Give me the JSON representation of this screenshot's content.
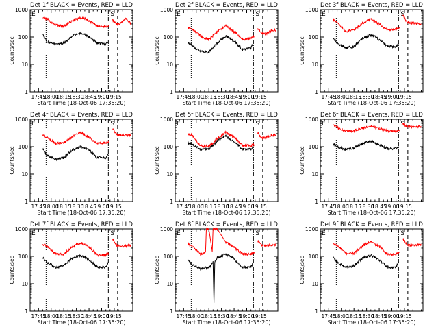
{
  "chart_data": [
    {
      "type": "line",
      "title": "Det 1f BLACK = Events, RED = LLD",
      "xlabel": "Start Time (18-Oct-06 17:35:20)",
      "ylabel": "Counts/sec",
      "x_ticks": [
        "17:45",
        "18:00",
        "18:15",
        "18:30",
        "18:45",
        "19:00",
        "19:15"
      ],
      "y_ticks": [
        "1",
        "10",
        "100",
        "1000"
      ],
      "yscale": "log",
      "ylim": [
        1,
        1000
      ],
      "xlim_minutes": [
        -10,
        112
      ],
      "markers": [
        "E",
        "S"
      ],
      "vlines": {
        "dotted": [
          9,
          114
        ],
        "dashdot": [
          83
        ],
        "dashed": [
          94
        ]
      },
      "series": [
        {
          "color": "#ff0000",
          "x": [
            5,
            10,
            20,
            30,
            40,
            50,
            60,
            70,
            80,
            84,
            88,
            93,
            98,
            104,
            110
          ],
          "values": [
            520,
            460,
            270,
            250,
            380,
            520,
            400,
            250,
            235,
            230,
            420,
            300,
            330,
            480,
            300
          ],
          "gaps_after": [
            84
          ]
        },
        {
          "color": "#000000",
          "x": [
            5,
            10,
            20,
            30,
            40,
            50,
            60,
            70,
            80,
            83
          ],
          "values": [
            130,
            70,
            55,
            60,
            110,
            145,
            100,
            60,
            55,
            70
          ]
        }
      ]
    },
    {
      "type": "line",
      "title": "Det 2f BLACK = Events, RED = LLD",
      "xlabel": "Start Time (18-Oct-06 17:35:20)",
      "ylabel": "Counts/sec",
      "x_ticks": [
        "17:45",
        "18:00",
        "18:15",
        "18:30",
        "18:45",
        "19:00",
        "19:15"
      ],
      "y_ticks": [
        "1",
        "10",
        "100",
        "1000"
      ],
      "yscale": "log",
      "ylim": [
        1,
        1000
      ],
      "xlim_minutes": [
        -10,
        112
      ],
      "markers": [
        "E",
        "S"
      ],
      "vlines": {
        "dotted": [
          9,
          114
        ],
        "dashdot": [
          83
        ],
        "dashed": [
          94
        ]
      },
      "series": [
        {
          "color": "#ff0000",
          "x": [
            5,
            10,
            20,
            30,
            40,
            50,
            60,
            70,
            80,
            84,
            88,
            93,
            98,
            104,
            110
          ],
          "values": [
            220,
            200,
            110,
            80,
            160,
            250,
            160,
            80,
            90,
            110,
            200,
            140,
            130,
            170,
            180
          ],
          "gaps_after": [
            84
          ]
        },
        {
          "color": "#000000",
          "x": [
            5,
            10,
            20,
            30,
            40,
            50,
            60,
            70,
            80,
            83
          ],
          "values": [
            60,
            50,
            30,
            28,
            60,
            110,
            70,
            35,
            40,
            60
          ]
        }
      ]
    },
    {
      "type": "line",
      "title": "Det 3f BLACK = Events, RED = LLD",
      "xlabel": "Start Time (18-Oct-06 17:35:20)",
      "ylabel": "Counts/sec",
      "x_ticks": [
        "17:45",
        "18:00",
        "18:15",
        "18:30",
        "18:45",
        "19:00",
        "19:15"
      ],
      "y_ticks": [
        "1",
        "10",
        "100",
        "1000"
      ],
      "yscale": "log",
      "ylim": [
        1,
        1000
      ],
      "xlim_minutes": [
        -10,
        112
      ],
      "markers": [
        "E",
        "S"
      ],
      "vlines": {
        "dotted": [
          9,
          114
        ],
        "dashdot": [
          83
        ],
        "dashed": [
          94
        ]
      },
      "series": [
        {
          "color": "#ff0000",
          "x": [
            5,
            10,
            20,
            30,
            40,
            50,
            60,
            70,
            80,
            84,
            88,
            93,
            98,
            104,
            110
          ],
          "values": [
            420,
            350,
            160,
            180,
            320,
            450,
            300,
            180,
            200,
            210,
            650,
            350,
            330,
            320,
            300
          ],
          "gaps_after": [
            84
          ]
        },
        {
          "color": "#000000",
          "x": [
            5,
            10,
            20,
            30,
            40,
            50,
            60,
            70,
            80,
            83
          ],
          "values": [
            100,
            60,
            40,
            45,
            90,
            120,
            85,
            45,
            45,
            60
          ]
        }
      ]
    },
    {
      "type": "line",
      "title": "Det 4f BLACK = Events, RED = LLD",
      "xlabel": "Start Time (18-Oct-06 17:35:20)",
      "ylabel": "Counts/sec",
      "x_ticks": [
        "17:45",
        "18:00",
        "18:15",
        "18:30",
        "18:45",
        "19:00",
        "19:15"
      ],
      "y_ticks": [
        "1",
        "10",
        "100",
        "1000"
      ],
      "yscale": "log",
      "ylim": [
        1,
        1000
      ],
      "xlim_minutes": [
        -10,
        112
      ],
      "markers": [
        "E",
        "S"
      ],
      "vlines": {
        "dotted": [
          9,
          114
        ],
        "dashdot": [
          83
        ],
        "dashed": [
          94
        ]
      },
      "series": [
        {
          "color": "#ff0000",
          "x": [
            5,
            10,
            20,
            30,
            40,
            50,
            60,
            70,
            80,
            84,
            88,
            93,
            98,
            104,
            110
          ],
          "values": [
            260,
            220,
            130,
            140,
            230,
            330,
            220,
            130,
            140,
            160,
            450,
            280,
            250,
            260,
            270
          ],
          "gaps_after": [
            84
          ]
        },
        {
          "color": "#000000",
          "x": [
            5,
            10,
            20,
            30,
            40,
            50,
            60,
            70,
            80,
            83
          ],
          "values": [
            80,
            50,
            35,
            40,
            75,
            100,
            75,
            40,
            40,
            55
          ]
        }
      ]
    },
    {
      "type": "line",
      "title": "Det 5f BLACK = Events, RED = LLD",
      "xlabel": "Start Time (18-Oct-06 17:35:20)",
      "ylabel": "Counts/sec",
      "x_ticks": [
        "17:45",
        "18:00",
        "18:15",
        "18:30",
        "18:45",
        "19:00",
        "19:15"
      ],
      "y_ticks": [
        "1",
        "10",
        "100",
        "1000"
      ],
      "yscale": "log",
      "ylim": [
        1,
        1000
      ],
      "xlim_minutes": [
        -10,
        112
      ],
      "markers": [
        "E",
        "S"
      ],
      "vlines": {
        "dotted": [
          9,
          114
        ],
        "dashdot": [
          83
        ],
        "dashed": [
          94
        ]
      },
      "series": [
        {
          "color": "#ff0000",
          "x": [
            5,
            10,
            20,
            30,
            40,
            50,
            60,
            70,
            80,
            84,
            88,
            93,
            98,
            104,
            110
          ],
          "values": [
            300,
            260,
            110,
            100,
            200,
            330,
            220,
            110,
            110,
            120,
            320,
            200,
            220,
            260,
            270
          ],
          "gaps_after": [
            84
          ]
        },
        {
          "color": "#000000",
          "x": [
            5,
            10,
            20,
            30,
            40,
            50,
            60,
            70,
            80,
            83
          ],
          "values": [
            140,
            120,
            80,
            80,
            160,
            240,
            150,
            80,
            80,
            100
          ]
        }
      ]
    },
    {
      "type": "line",
      "title": "Det 6f BLACK = Events, RED = LLD",
      "xlabel": "Start Time (18-Oct-06 17:35:20)",
      "ylabel": "Counts/sec",
      "x_ticks": [
        "17:45",
        "18:00",
        "18:15",
        "18:30",
        "18:45",
        "19:00",
        "19:15"
      ],
      "y_ticks": [
        "1",
        "10",
        "100",
        "1000"
      ],
      "yscale": "log",
      "ylim": [
        1,
        1000
      ],
      "xlim_minutes": [
        -10,
        112
      ],
      "markers": [
        "E",
        "S"
      ],
      "vlines": {
        "dotted": [
          9,
          114
        ],
        "dashdot": [
          83
        ],
        "dashed": [
          94
        ]
      },
      "series": [
        {
          "color": "#ff0000",
          "x": [
            5,
            10,
            20,
            30,
            40,
            50,
            60,
            70,
            80,
            84,
            88,
            93,
            98,
            104,
            110
          ],
          "values": [
            650,
            500,
            380,
            380,
            480,
            570,
            450,
            380,
            380,
            390,
            700,
            550,
            520,
            530,
            540
          ],
          "gaps_after": [
            84
          ]
        },
        {
          "color": "#000000",
          "x": [
            5,
            10,
            20,
            30,
            40,
            50,
            60,
            70,
            80,
            83
          ],
          "values": [
            130,
            100,
            80,
            90,
            130,
            160,
            120,
            85,
            85,
            100
          ]
        }
      ]
    },
    {
      "type": "line",
      "title": "Det 7f BLACK = Events, RED = LLD",
      "xlabel": "Start Time (18-Oct-06 17:35:20)",
      "ylabel": "Counts/sec",
      "x_ticks": [
        "17:45",
        "18:00",
        "18:15",
        "18:30",
        "18:45",
        "19:00",
        "19:15"
      ],
      "y_ticks": [
        "1",
        "10",
        "100",
        "1000"
      ],
      "yscale": "log",
      "ylim": [
        1,
        1000
      ],
      "xlim_minutes": [
        -10,
        112
      ],
      "markers": [
        "E",
        "S"
      ],
      "vlines": {
        "dotted": [
          9,
          114
        ],
        "dashdot": [
          83
        ],
        "dashed": [
          94
        ]
      },
      "series": [
        {
          "color": "#ff0000",
          "x": [
            5,
            10,
            20,
            30,
            40,
            50,
            60,
            70,
            80,
            84,
            88,
            93,
            98,
            104,
            110
          ],
          "values": [
            280,
            240,
            120,
            120,
            220,
            320,
            220,
            110,
            110,
            130,
            420,
            250,
            230,
            240,
            250
          ],
          "gaps_after": [
            84
          ]
        },
        {
          "color": "#000000",
          "x": [
            5,
            10,
            20,
            30,
            40,
            50,
            60,
            70,
            80,
            83
          ],
          "values": [
            90,
            60,
            40,
            45,
            85,
            110,
            75,
            40,
            40,
            60
          ]
        }
      ]
    },
    {
      "type": "line",
      "title": "Det 8f BLACK = Events, RED = LLD",
      "xlabel": "Start Time (18-Oct-06 17:35:20)",
      "ylabel": "Counts/sec",
      "x_ticks": [
        "17:45",
        "18:00",
        "18:15",
        "18:30",
        "18:45",
        "19:00",
        "19:15"
      ],
      "y_ticks": [
        "1",
        "10",
        "100",
        "1000"
      ],
      "yscale": "log",
      "ylim": [
        1,
        1000
      ],
      "xlim_minutes": [
        -10,
        112
      ],
      "markers": [
        "E",
        "S"
      ],
      "vlines": {
        "dotted": [
          9,
          114
        ],
        "dashdot": [
          83
        ],
        "dashed": [
          94
        ]
      },
      "series": [
        {
          "color": "#ff0000",
          "x": [
            5,
            10,
            20,
            26,
            27,
            30,
            34,
            35,
            40,
            50,
            60,
            70,
            80,
            84,
            88,
            93,
            98,
            104,
            110
          ],
          "values": [
            280,
            240,
            120,
            140,
            1000,
            1000,
            150,
            1000,
            1000,
            330,
            220,
            120,
            120,
            140,
            380,
            260,
            240,
            260,
            270
          ],
          "gaps_after": [
            84
          ]
        },
        {
          "color": "#000000",
          "x": [
            5,
            10,
            20,
            30,
            35,
            36,
            37,
            40,
            50,
            60,
            70,
            80,
            83
          ],
          "values": [
            80,
            50,
            35,
            40,
            60,
            2,
            60,
            90,
            120,
            80,
            40,
            40,
            60
          ]
        }
      ]
    },
    {
      "type": "line",
      "title": "Det 9f BLACK = Events, RED = LLD",
      "xlabel": "Start Time (18-Oct-06 17:35:20)",
      "ylabel": "Counts/sec",
      "x_ticks": [
        "17:45",
        "18:00",
        "18:15",
        "18:30",
        "18:45",
        "19:00",
        "19:15"
      ],
      "y_ticks": [
        "1",
        "10",
        "100",
        "1000"
      ],
      "yscale": "log",
      "ylim": [
        1,
        1000
      ],
      "xlim_minutes": [
        -10,
        112
      ],
      "markers": [
        "E",
        "S"
      ],
      "vlines": {
        "dotted": [
          9,
          114
        ],
        "dashdot": [
          83
        ],
        "dashed": [
          94
        ]
      },
      "series": [
        {
          "color": "#ff0000",
          "x": [
            5,
            10,
            20,
            30,
            40,
            50,
            60,
            70,
            80,
            84,
            88,
            93,
            98,
            104,
            110
          ],
          "values": [
            290,
            250,
            130,
            130,
            240,
            340,
            230,
            120,
            120,
            140,
            440,
            270,
            250,
            260,
            270
          ],
          "gaps_after": [
            84
          ]
        },
        {
          "color": "#000000",
          "x": [
            5,
            10,
            20,
            30,
            40,
            50,
            60,
            70,
            80,
            83
          ],
          "values": [
            90,
            60,
            40,
            45,
            85,
            110,
            75,
            40,
            40,
            60
          ]
        }
      ]
    }
  ]
}
